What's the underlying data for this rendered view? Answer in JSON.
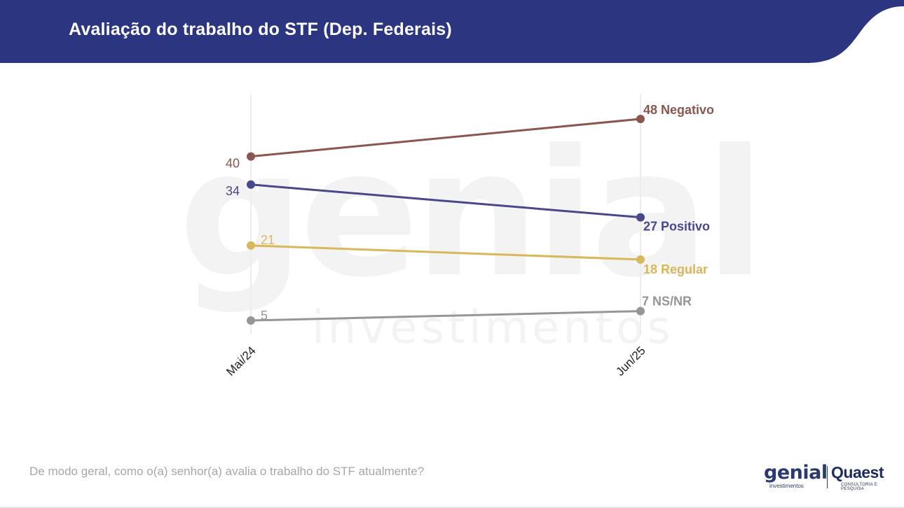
{
  "colors": {
    "header_bg": "#2b3580",
    "negativo": "#8a5650",
    "positivo": "#4a4888",
    "regular": "#d8b85c",
    "nsnr": "#969696"
  },
  "header": {
    "title": "Avaliação do trabalho do STF (Dep. Federais)"
  },
  "footer": {
    "question": "De modo geral, como o(a) senhor(a) avalia o trabalho do STF atualmente?",
    "brand_left": "genial",
    "brand_left_sub": "investimentos",
    "brand_right": "Quaest",
    "brand_right_sub": "CONSULTORIA E PESQUISA"
  },
  "watermark": {
    "big": "genial",
    "small": "investimentos"
  },
  "chart_data": {
    "type": "line",
    "x": [
      "Mai/24",
      "Jun/25"
    ],
    "ylim": [
      5,
      48
    ],
    "grid": "vertical lines at each date",
    "series": [
      {
        "name": "Negativo",
        "values": [
          40,
          48
        ],
        "color": "#8a5650",
        "start_label": "40",
        "end_label": "48 Negativo"
      },
      {
        "name": "Positivo",
        "values": [
          34,
          27
        ],
        "color": "#4a4888",
        "start_label": "34",
        "end_label": "27 Positivo"
      },
      {
        "name": "Regular",
        "values": [
          21,
          18
        ],
        "color": "#d8b85c",
        "start_label": "21",
        "end_label": "18 Regular"
      },
      {
        "name": "NS/NR",
        "values": [
          5,
          7
        ],
        "color": "#969696",
        "start_label": "5",
        "end_label": "7 NS/NR"
      }
    ]
  }
}
